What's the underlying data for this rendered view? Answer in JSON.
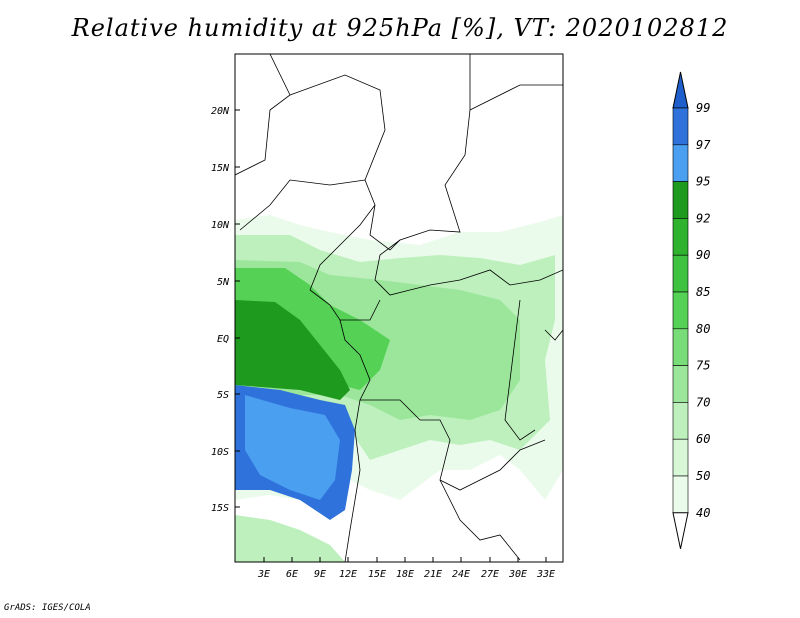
{
  "title": "Relative humidity at 925hPa [%], VT: 2020102812",
  "footer": "GrADS: IGES/COLA",
  "map": {
    "lat_labels": [
      "20N",
      "15N",
      "10N",
      "5N",
      "EQ",
      "5S",
      "10S",
      "15S"
    ],
    "lon_labels": [
      "3E",
      "6E",
      "9E",
      "12E",
      "15E",
      "18E",
      "21E",
      "24E",
      "27E",
      "30E",
      "33E"
    ]
  },
  "colorbar": {
    "levels": [
      "99",
      "97",
      "95",
      "92",
      "90",
      "85",
      "80",
      "75",
      "70",
      "60",
      "50",
      "40"
    ],
    "colors": {
      "top_arrow": "#1e5fcc",
      "97_99": "#2f72db",
      "95_97": "#4a9ff0",
      "92_95": "#1e9a1e",
      "90_92": "#2fb32f",
      "85_90": "#3fc23f",
      "80_85": "#55d255",
      "75_80": "#78dd78",
      "70_75": "#9be69b",
      "60_70": "#bdf0bd",
      "50_60": "#d7f7d7",
      "40_50": "#ebfbeb",
      "bottom_arrow": "#ffffff"
    }
  }
}
